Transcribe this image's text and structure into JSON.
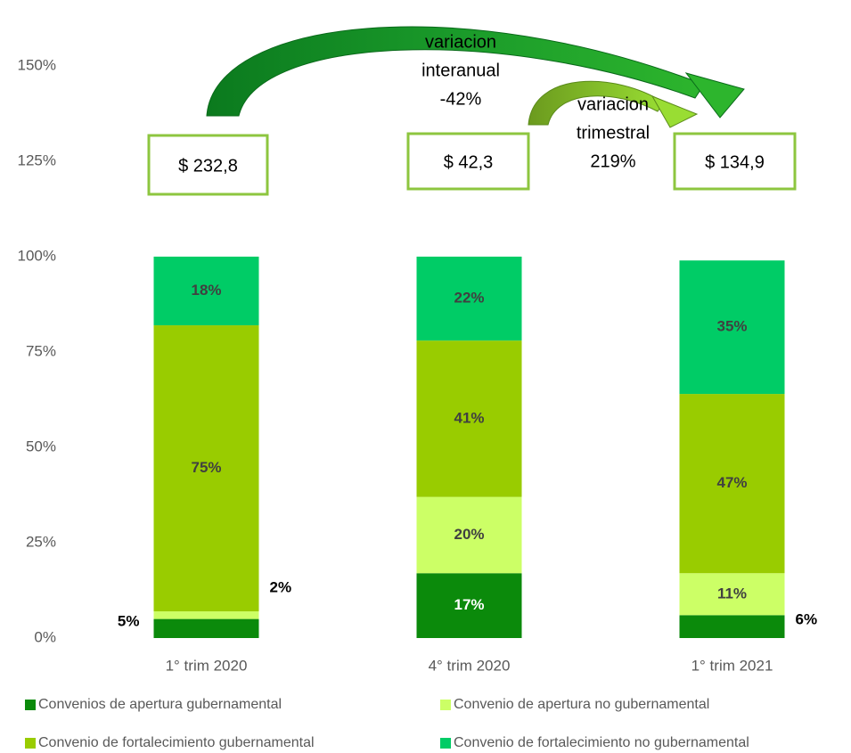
{
  "chart_data": {
    "type": "stacked_bar",
    "categories": [
      "1° trim 2020",
      "4° trim 2020",
      "1° trim 2021"
    ],
    "series": [
      {
        "name": "Convenios de apertura gubernamental",
        "color": "#0b8a0b",
        "values": [
          5,
          17,
          6
        ],
        "value_labels": [
          "5%",
          "17%",
          "6%"
        ]
      },
      {
        "name": "Convenio de apertura no gubernamental",
        "color": "#ccff66",
        "values": [
          2,
          20,
          11
        ],
        "value_labels": [
          "2%",
          "20%",
          "11%"
        ]
      },
      {
        "name": "Convenio de fortalecimiento gubernamental",
        "color": "#99cc00",
        "values": [
          75,
          41,
          47
        ],
        "value_labels": [
          "75%",
          "41%",
          "47%"
        ]
      },
      {
        "name": "Convenio de fortalecimiento no gubernamental",
        "color": "#00cc66",
        "values": [
          18,
          22,
          35
        ],
        "value_labels": [
          "18%",
          "22%",
          "35%"
        ]
      }
    ],
    "ylim": [
      0,
      150
    ],
    "yticks": [
      {
        "value": 0,
        "label": "0%"
      },
      {
        "value": 25,
        "label": "25%"
      },
      {
        "value": 50,
        "label": "50%"
      },
      {
        "value": 75,
        "label": "75%"
      },
      {
        "value": 100,
        "label": "100%"
      },
      {
        "value": 125,
        "label": "125%"
      },
      {
        "value": 150,
        "label": "150%"
      }
    ],
    "grid": false,
    "box_labels": [
      "$ 232,8",
      "$ 42,3",
      "$ 134,9"
    ],
    "annual_variation": [
      "variacion",
      "interanual",
      "-42%"
    ],
    "quarterly_variation": [
      "variacion",
      "trimestral",
      "219%"
    ]
  }
}
